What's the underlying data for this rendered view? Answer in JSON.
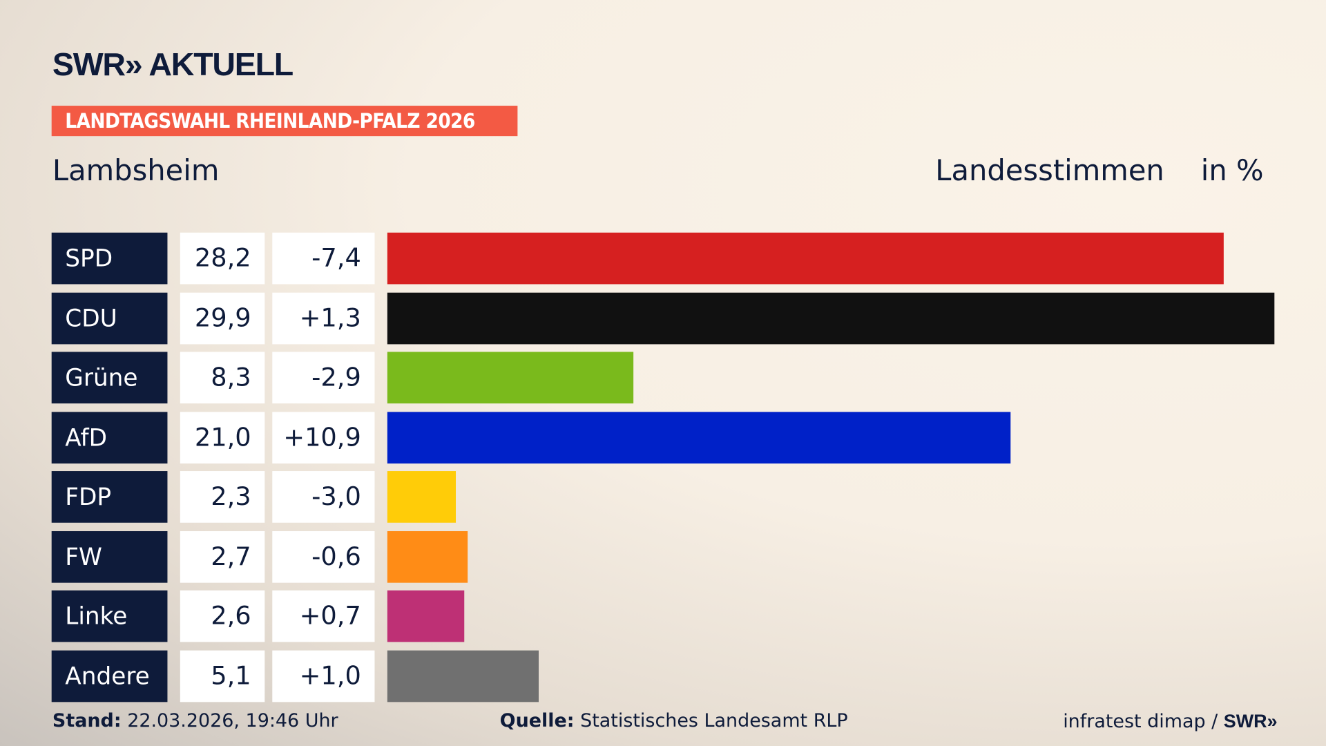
{
  "logo": "SWR» AKTUELL",
  "badge": "LANDTAGSWAHL RHEINLAND-PFALZ 2026",
  "location": "Lambsheim",
  "header": {
    "type": "Landesstimmen",
    "unit": "in %"
  },
  "chart_data": {
    "type": "bar",
    "orientation": "horizontal",
    "categories": [
      "SPD",
      "CDU",
      "Grüne",
      "AfD",
      "FDP",
      "FW",
      "Linke",
      "Andere"
    ],
    "values": [
      "28,2",
      "29,9",
      "8,3",
      "21,0",
      "2,3",
      "2,7",
      "2,6",
      "5,1"
    ],
    "numeric_values": [
      28.2,
      29.9,
      8.3,
      21.0,
      2.3,
      2.7,
      2.6,
      5.1
    ],
    "changes": [
      "-7,4",
      "+1,3",
      "-2,9",
      "+10,9",
      "-3,0",
      "-0,6",
      "+0,7",
      "+1,0"
    ],
    "colors": [
      "#d62020",
      "#111111",
      "#7aba1c",
      "#0021c8",
      "#ffcc08",
      "#ff8c16",
      "#be3075",
      "#707070"
    ],
    "xlim": [
      0,
      29.9
    ]
  },
  "footer": {
    "stand_label": "Stand:",
    "stand_value": "22.03.2026, 19:46 Uhr",
    "source_label": "Quelle:",
    "source_value": "Statistisches Landesamt RLP",
    "credit": "infratest dimap /",
    "credit_logo": "SWR»"
  }
}
